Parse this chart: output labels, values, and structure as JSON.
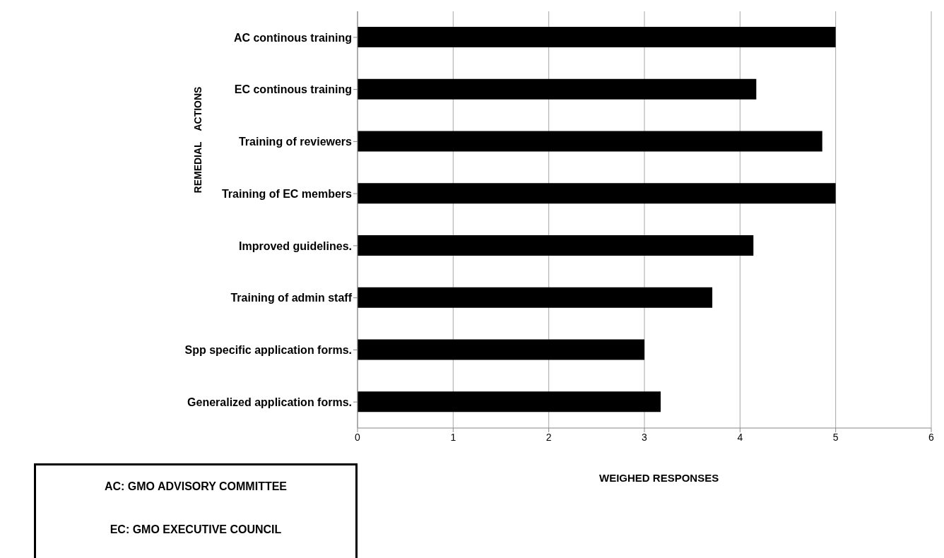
{
  "chart_data": {
    "type": "bar",
    "orientation": "horizontal",
    "xlabel": "WEIGHED RESPONSES",
    "ylabel": "REMEDIAL    ACTIONS",
    "categories": [
      "AC continous training",
      "EC continous training",
      "Training of reviewers ",
      "Training of EC members ",
      "Improved guidelines.",
      "Training of admin staff ",
      "Spp specific application forms.",
      "Generalized application forms."
    ],
    "values": [
      5,
      4.17,
      4.86,
      5,
      4.14,
      3.71,
      3,
      3.17
    ],
    "color": "#000000",
    "xlim": [
      0,
      6
    ],
    "xticks": [
      0,
      1,
      2,
      3,
      4,
      5,
      6
    ],
    "grid": "x",
    "legend": false,
    "annotations": [
      "AC: GMO ADVISORY COMMITTEE",
      "EC: GMO EXECUTIVE COUNCIL"
    ]
  }
}
